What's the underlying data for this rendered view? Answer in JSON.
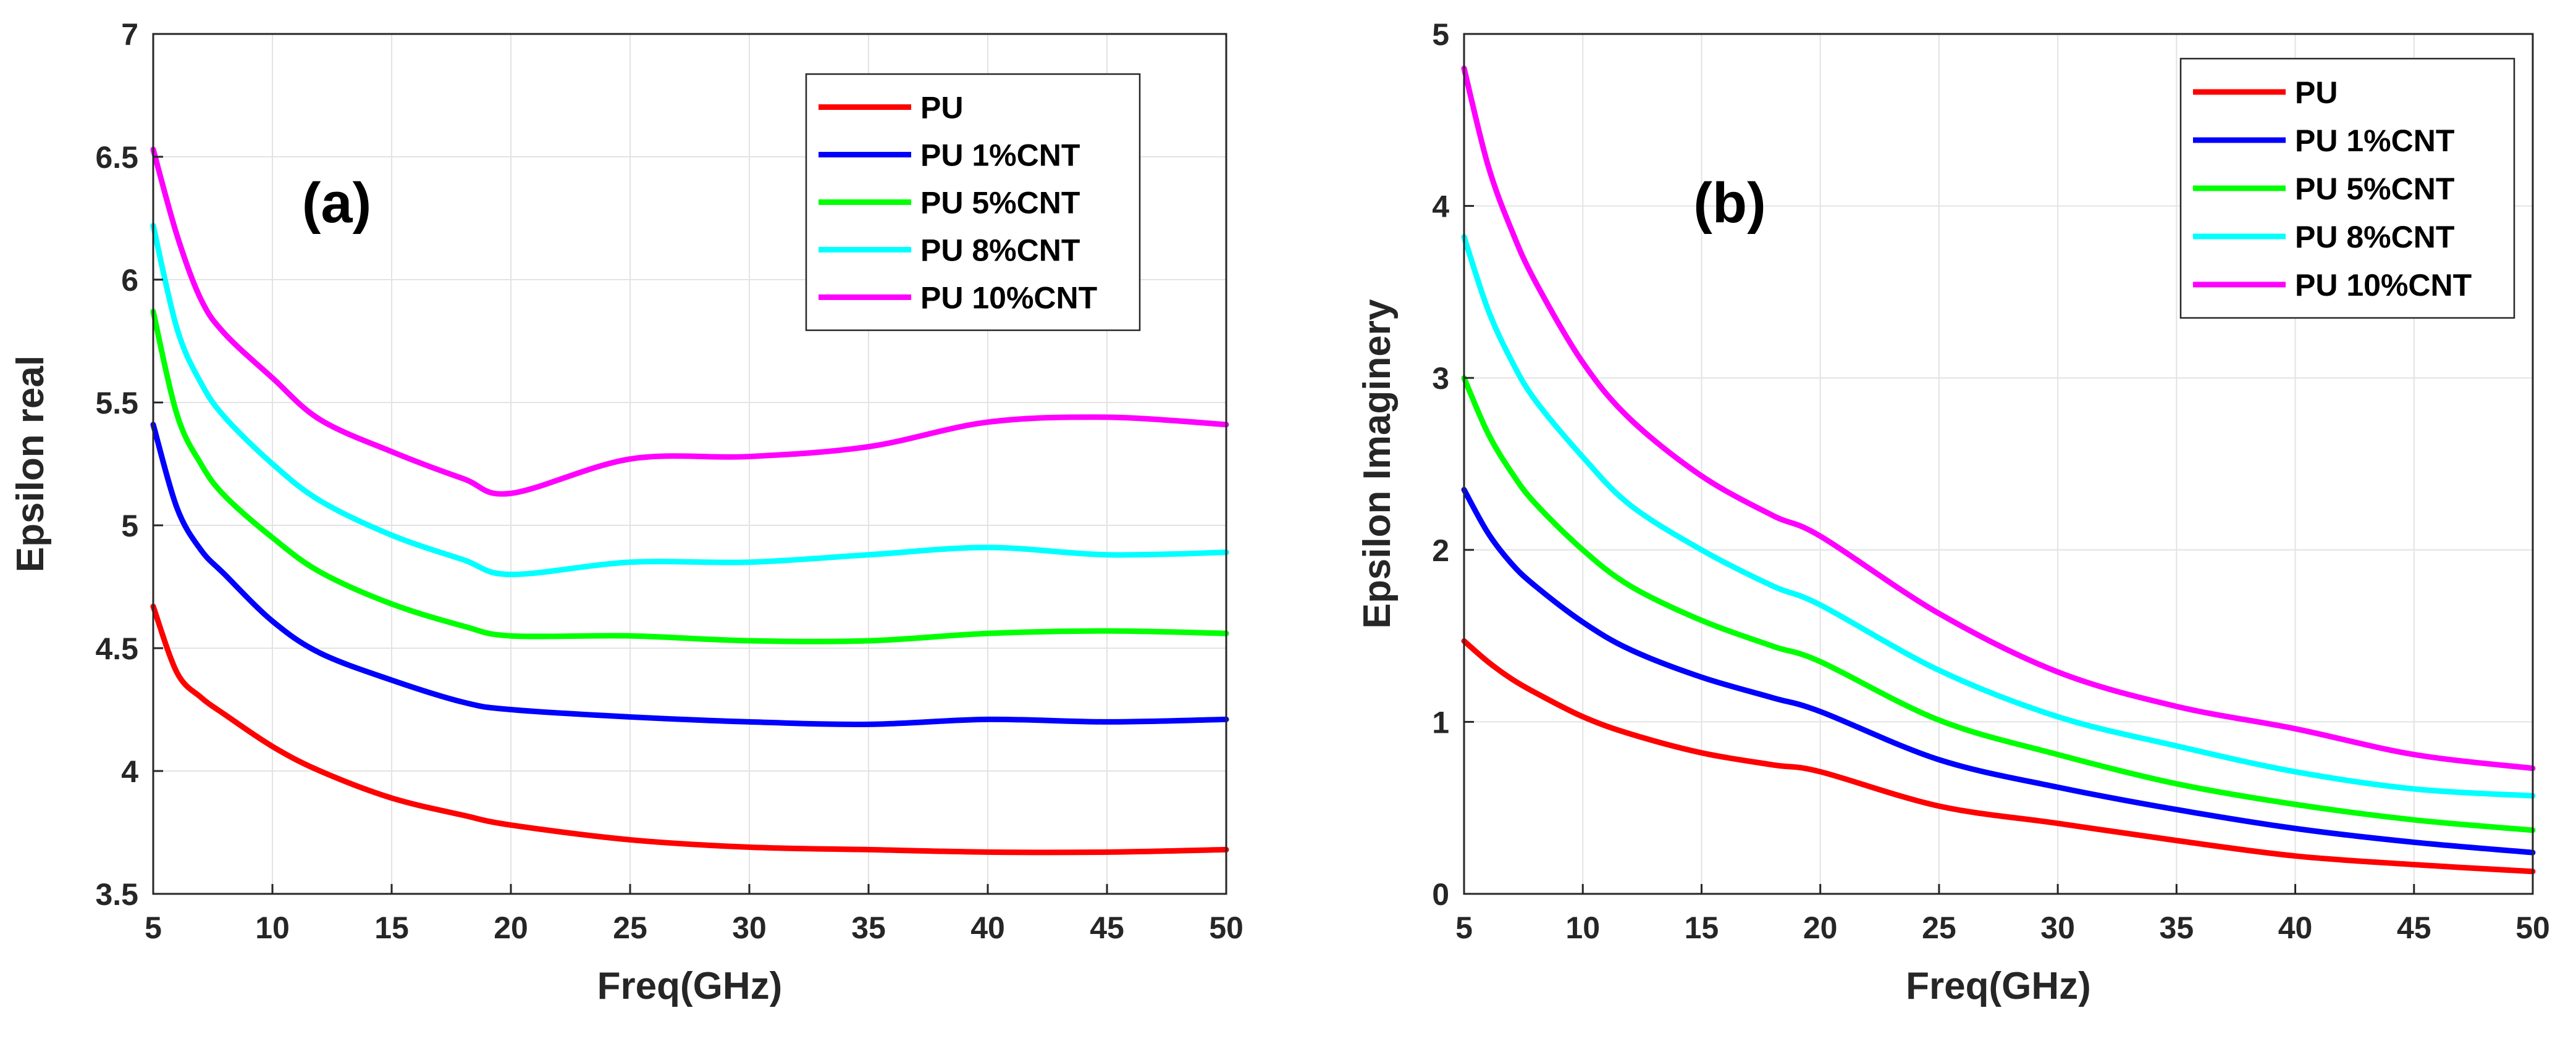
{
  "chart_data": [
    {
      "type": "line",
      "panel_label": "(a)",
      "xlabel": "Freq(GHz)",
      "ylabel": "Epsilon real",
      "xlim": [
        5,
        50
      ],
      "ylim": [
        3.5,
        7
      ],
      "xticks": [
        5,
        10,
        15,
        20,
        25,
        30,
        35,
        40,
        45,
        50
      ],
      "yticks": [
        3.5,
        4,
        4.5,
        5,
        5.5,
        6,
        6.5,
        7
      ],
      "grid": true,
      "legend_position": "top-right",
      "x": [
        5,
        6,
        7,
        8,
        10,
        12,
        15,
        18,
        20,
        25,
        30,
        35,
        40,
        45,
        50
      ],
      "series": [
        {
          "name": "PU",
          "color": "#ff0000",
          "values": [
            4.67,
            4.4,
            4.3,
            4.23,
            4.1,
            4.0,
            3.89,
            3.82,
            3.78,
            3.72,
            3.69,
            3.68,
            3.67,
            3.67,
            3.68
          ]
        },
        {
          "name": "PU 1%CNT",
          "color": "#0000ff",
          "values": [
            5.41,
            5.07,
            4.9,
            4.8,
            4.61,
            4.48,
            4.37,
            4.28,
            4.25,
            4.22,
            4.2,
            4.19,
            4.21,
            4.2,
            4.21
          ]
        },
        {
          "name": "PU 5%CNT",
          "color": "#00ff00",
          "values": [
            5.87,
            5.45,
            5.25,
            5.12,
            4.95,
            4.81,
            4.68,
            4.59,
            4.55,
            4.55,
            4.53,
            4.53,
            4.56,
            4.57,
            4.56
          ]
        },
        {
          "name": "PU 8%CNT",
          "color": "#00ffff",
          "values": [
            6.22,
            5.8,
            5.58,
            5.44,
            5.25,
            5.1,
            4.96,
            4.86,
            4.8,
            4.85,
            4.85,
            4.88,
            4.91,
            4.88,
            4.89
          ]
        },
        {
          "name": "PU 10%CNT",
          "color": "#ff00ff",
          "values": [
            6.53,
            6.18,
            5.92,
            5.78,
            5.6,
            5.43,
            5.3,
            5.19,
            5.13,
            5.27,
            5.28,
            5.32,
            5.42,
            5.44,
            5.41
          ]
        }
      ]
    },
    {
      "type": "line",
      "panel_label": "(b)",
      "xlabel": "Freq(GHz)",
      "ylabel": "Epsilon Imaginery",
      "xlim": [
        5,
        50
      ],
      "ylim": [
        0,
        5
      ],
      "xticks": [
        5,
        10,
        15,
        20,
        25,
        30,
        35,
        40,
        45,
        50
      ],
      "yticks": [
        0,
        1,
        2,
        3,
        4,
        5
      ],
      "grid": true,
      "legend_position": "top-right",
      "x": [
        5,
        6,
        7,
        8,
        10,
        12,
        15,
        18,
        20,
        25,
        30,
        35,
        40,
        45,
        50
      ],
      "series": [
        {
          "name": "PU",
          "color": "#ff0000",
          "values": [
            1.47,
            1.35,
            1.25,
            1.17,
            1.03,
            0.93,
            0.82,
            0.75,
            0.71,
            0.51,
            0.41,
            0.31,
            0.22,
            0.17,
            0.13
          ]
        },
        {
          "name": "PU 1%CNT",
          "color": "#0000ff",
          "values": [
            2.35,
            2.1,
            1.92,
            1.79,
            1.58,
            1.42,
            1.26,
            1.14,
            1.06,
            0.78,
            0.62,
            0.49,
            0.38,
            0.3,
            0.24
          ]
        },
        {
          "name": "PU 5%CNT",
          "color": "#00ff00",
          "values": [
            3.0,
            2.68,
            2.45,
            2.27,
            2.0,
            1.79,
            1.59,
            1.44,
            1.35,
            1.01,
            0.81,
            0.64,
            0.52,
            0.43,
            0.37
          ]
        },
        {
          "name": "PU 8%CNT",
          "color": "#00ffff",
          "values": [
            3.82,
            3.4,
            3.1,
            2.87,
            2.54,
            2.26,
            2.0,
            1.79,
            1.68,
            1.3,
            1.03,
            0.86,
            0.71,
            0.61,
            0.57
          ]
        },
        {
          "name": "PU 10%CNT",
          "color": "#ff00ff",
          "values": [
            4.8,
            4.24,
            3.86,
            3.56,
            3.09,
            2.76,
            2.43,
            2.2,
            2.08,
            1.63,
            1.29,
            1.09,
            0.96,
            0.81,
            0.73
          ]
        }
      ]
    }
  ]
}
